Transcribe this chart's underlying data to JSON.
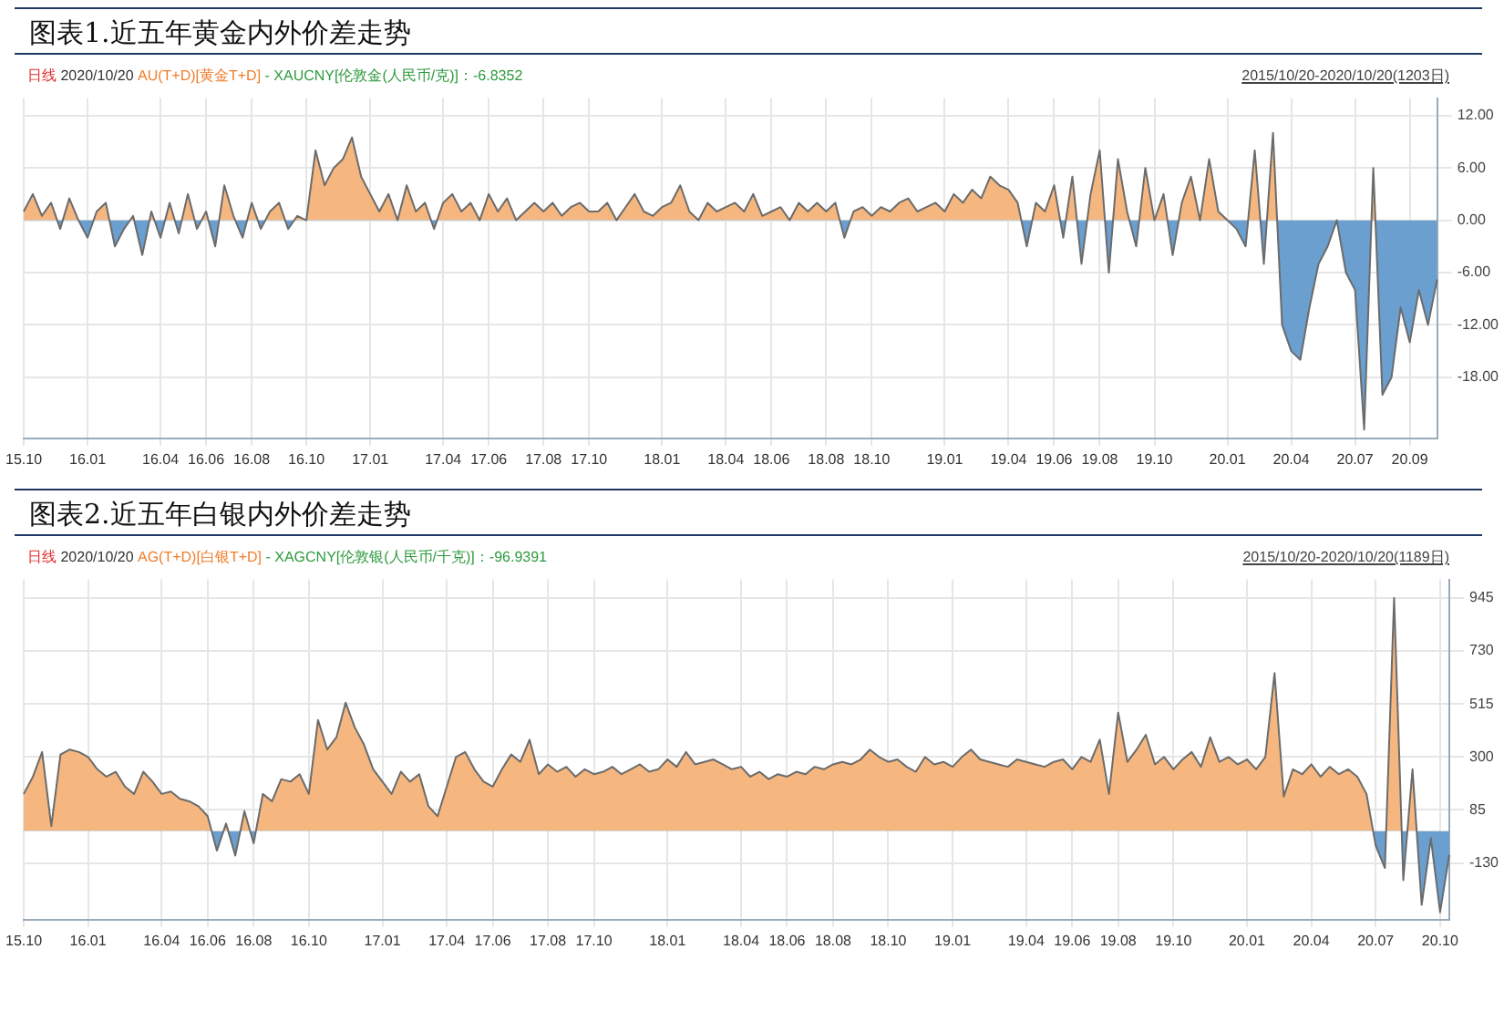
{
  "chart_data": [
    {
      "type": "area",
      "title": "图表1.近五年黄金内外价差走势",
      "annotations": [
        "日线",
        "2020/10/20",
        "AU(T+D)[黄金T+D]",
        "- XAUCNY[伦敦金(人民币/克)]：-6.8352",
        "2015/10/20-2020/10/20(1203日)"
      ],
      "categories": [
        "15.10",
        null,
        null,
        null,
        null,
        null,
        null,
        "16.01",
        null,
        null,
        null,
        null,
        null,
        null,
        null,
        "16.04",
        null,
        null,
        null,
        null,
        "16.06",
        null,
        null,
        null,
        null,
        "16.08",
        null,
        null,
        null,
        null,
        null,
        "16.10",
        null,
        null,
        null,
        null,
        null,
        null,
        "17.01",
        null,
        null,
        null,
        null,
        null,
        null,
        null,
        "17.04",
        null,
        null,
        null,
        null,
        "17.06",
        null,
        null,
        null,
        null,
        null,
        "17.08",
        null,
        null,
        null,
        null,
        "17.10",
        null,
        null,
        null,
        null,
        null,
        null,
        null,
        "18.01",
        null,
        null,
        null,
        null,
        null,
        null,
        "18.04",
        null,
        null,
        null,
        null,
        "18.06",
        null,
        null,
        null,
        null,
        null,
        "18.08",
        null,
        null,
        null,
        null,
        "18.10",
        null,
        null,
        null,
        null,
        null,
        null,
        null,
        "19.01",
        null,
        null,
        null,
        null,
        null,
        null,
        "19.04",
        null,
        null,
        null,
        null,
        "19.06",
        null,
        null,
        null,
        null,
        "19.08",
        null,
        null,
        null,
        null,
        null,
        "19.10",
        null,
        null,
        null,
        null,
        null,
        null,
        null,
        "20.01",
        null,
        null,
        null,
        null,
        null,
        null,
        "20.04",
        null,
        null,
        null,
        null,
        null,
        null,
        "20.07",
        null,
        null,
        null,
        null,
        null,
        "20.09",
        null,
        null,
        null
      ],
      "series": [
        {
          "color": "#f5b77f",
          "values": [
            1,
            3,
            0.5,
            2,
            -1,
            2.5,
            0,
            -2,
            1,
            2,
            -3,
            -1,
            0.5,
            -4,
            1,
            -2,
            2,
            -1.5,
            3,
            -1,
            1,
            -3,
            4,
            0.5,
            -2,
            2,
            -1,
            1,
            2,
            -1,
            0.5,
            0,
            8,
            4,
            6,
            7,
            9.5,
            5,
            3,
            1,
            3,
            0,
            4,
            1,
            2,
            -1,
            2,
            3,
            1,
            2,
            0,
            3,
            1,
            2.5,
            0,
            1,
            2,
            1,
            2,
            0.5,
            1.5,
            2,
            1,
            1,
            2,
            0,
            1.5,
            3,
            1,
            0.5,
            1.5,
            2,
            4,
            1,
            0,
            2,
            1,
            1.5,
            2,
            1,
            3,
            0.5,
            1,
            1.5,
            0,
            2,
            1,
            2,
            1,
            2,
            -2,
            1,
            1.5,
            0.5,
            1.5,
            1,
            2,
            2.5,
            1,
            1.5,
            2,
            1,
            3,
            2,
            3.5,
            2.5,
            5,
            4,
            3.5,
            2,
            -3,
            2,
            1,
            4,
            -2,
            5,
            -5,
            3,
            8,
            -6,
            7,
            1,
            -3,
            6,
            0,
            3,
            -4,
            2,
            5,
            0,
            7,
            1,
            0,
            -1,
            -3,
            8,
            -5,
            10,
            -12,
            -15,
            -16,
            -10,
            -5,
            -3,
            0,
            -6,
            -8,
            -24,
            6,
            -20,
            -18,
            -10,
            -14,
            -8,
            -12,
            -6.8
          ]
        }
      ],
      "ylim": [
        -25,
        14
      ],
      "yticks": [
        {
          "value": 12,
          "label": "12.00"
        },
        {
          "value": 6,
          "label": "6.00"
        },
        {
          "value": 0,
          "label": "0.00"
        },
        {
          "value": -6,
          "label": "-6.00"
        },
        {
          "value": -12,
          "label": "-12.00"
        },
        {
          "value": -18,
          "label": "-18.00"
        }
      ],
      "grid": true,
      "legend": false
    },
    {
      "type": "area",
      "title": "图表2.近五年白银内外价差走势",
      "annotations": [
        "日线",
        "2020/10/20",
        "AG(T+D)[白银T+D]",
        "- XAGCNY[伦敦银(人民币/千克)]：-96.9391",
        "2015/10/20-2020/10/20(1189日)"
      ],
      "categories": [
        "15.10",
        null,
        null,
        null,
        null,
        null,
        null,
        "16.01",
        null,
        null,
        null,
        null,
        null,
        null,
        null,
        "16.04",
        null,
        null,
        null,
        null,
        "16.06",
        null,
        null,
        null,
        null,
        "16.08",
        null,
        null,
        null,
        null,
        null,
        "16.10",
        null,
        null,
        null,
        null,
        null,
        null,
        null,
        "17.01",
        null,
        null,
        null,
        null,
        null,
        null,
        "17.04",
        null,
        null,
        null,
        null,
        "17.06",
        null,
        null,
        null,
        null,
        null,
        "17.08",
        null,
        null,
        null,
        null,
        "17.10",
        null,
        null,
        null,
        null,
        null,
        null,
        null,
        "18.01",
        null,
        null,
        null,
        null,
        null,
        null,
        null,
        "18.04",
        null,
        null,
        null,
        null,
        "18.06",
        null,
        null,
        null,
        null,
        "18.08",
        null,
        null,
        null,
        null,
        null,
        "18.10",
        null,
        null,
        null,
        null,
        null,
        null,
        "19.01",
        null,
        null,
        null,
        null,
        null,
        null,
        null,
        "19.04",
        null,
        null,
        null,
        null,
        "19.06",
        null,
        null,
        null,
        null,
        "19.08",
        null,
        null,
        null,
        null,
        null,
        "19.10",
        null,
        null,
        null,
        null,
        null,
        null,
        null,
        "20.01",
        null,
        null,
        null,
        null,
        null,
        null,
        "20.04",
        null,
        null,
        null,
        null,
        null,
        null,
        "20.07",
        null,
        null,
        null,
        null,
        null,
        null,
        "20.10",
        null
      ],
      "series": [
        {
          "color": "#f5b77f",
          "values": [
            150,
            220,
            320,
            20,
            310,
            330,
            320,
            300,
            250,
            220,
            240,
            180,
            150,
            240,
            200,
            150,
            160,
            130,
            120,
            100,
            60,
            -80,
            30,
            -100,
            80,
            -50,
            150,
            120,
            210,
            200,
            230,
            150,
            450,
            330,
            380,
            520,
            420,
            350,
            250,
            200,
            150,
            240,
            200,
            230,
            100,
            60,
            180,
            300,
            320,
            250,
            200,
            180,
            250,
            310,
            280,
            370,
            230,
            270,
            240,
            260,
            220,
            250,
            230,
            240,
            260,
            230,
            250,
            270,
            240,
            250,
            290,
            260,
            320,
            270,
            280,
            290,
            270,
            250,
            260,
            220,
            240,
            210,
            230,
            220,
            240,
            230,
            260,
            250,
            270,
            280,
            270,
            290,
            330,
            300,
            280,
            290,
            260,
            240,
            300,
            270,
            280,
            260,
            300,
            330,
            290,
            280,
            270,
            260,
            290,
            280,
            270,
            260,
            280,
            290,
            250,
            300,
            280,
            370,
            150,
            480,
            280,
            330,
            390,
            270,
            300,
            250,
            290,
            320,
            260,
            380,
            280,
            300,
            270,
            290,
            250,
            300,
            640,
            140,
            250,
            230,
            270,
            220,
            260,
            230,
            250,
            220,
            150,
            -60,
            -150,
            945,
            -200,
            250,
            -300,
            -30,
            -330,
            -97
          ]
        }
      ],
      "ylim": [
        -360,
        1020
      ],
      "yticks": [
        945,
        730,
        515,
        300,
        85,
        -130
      ],
      "grid": true,
      "legend": false
    }
  ]
}
